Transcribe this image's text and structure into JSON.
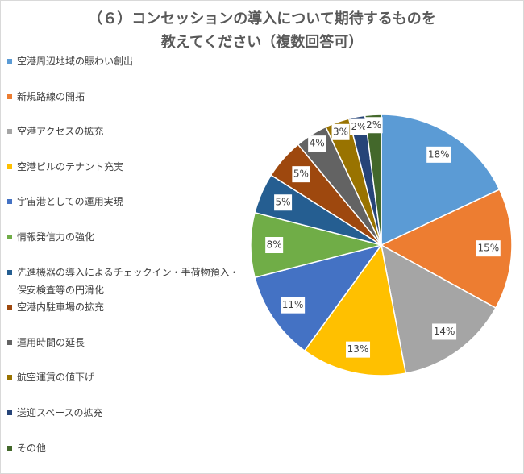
{
  "chart_data": {
    "type": "pie",
    "title": [
      "（６）コンセッションの導入について期待するものを",
      "教えてください（複数回答可）"
    ],
    "categories": [
      "空港周辺地域の賑わい創出",
      "新規路線の開拓",
      "空港アクセスの拡充",
      "空港ビルのテナント充実",
      "宇宙港としての運用実現",
      "情報発信力の強化",
      "先進機器の導入によるチェックイン・手荷物預入・保安検査等の円滑化",
      "空港内駐車場の拡充",
      "運用時間の延長",
      "航空運賃の値下げ",
      "送迎スペースの拡充",
      "その他"
    ],
    "values": [
      18,
      15,
      14,
      13,
      11,
      8,
      5,
      5,
      4,
      3,
      2,
      2
    ],
    "value_labels": [
      "18%",
      "15%",
      "14%",
      "13%",
      "11%",
      "8%",
      "5%",
      "5%",
      "4%",
      "3%",
      "2%",
      "2%"
    ],
    "colors": [
      "#5b9bd5",
      "#ed7d31",
      "#a5a5a5",
      "#ffc000",
      "#4472c4",
      "#70ad47",
      "#255e91",
      "#9e480e",
      "#636363",
      "#997300",
      "#264478",
      "#43682b"
    ],
    "legend": "left"
  }
}
